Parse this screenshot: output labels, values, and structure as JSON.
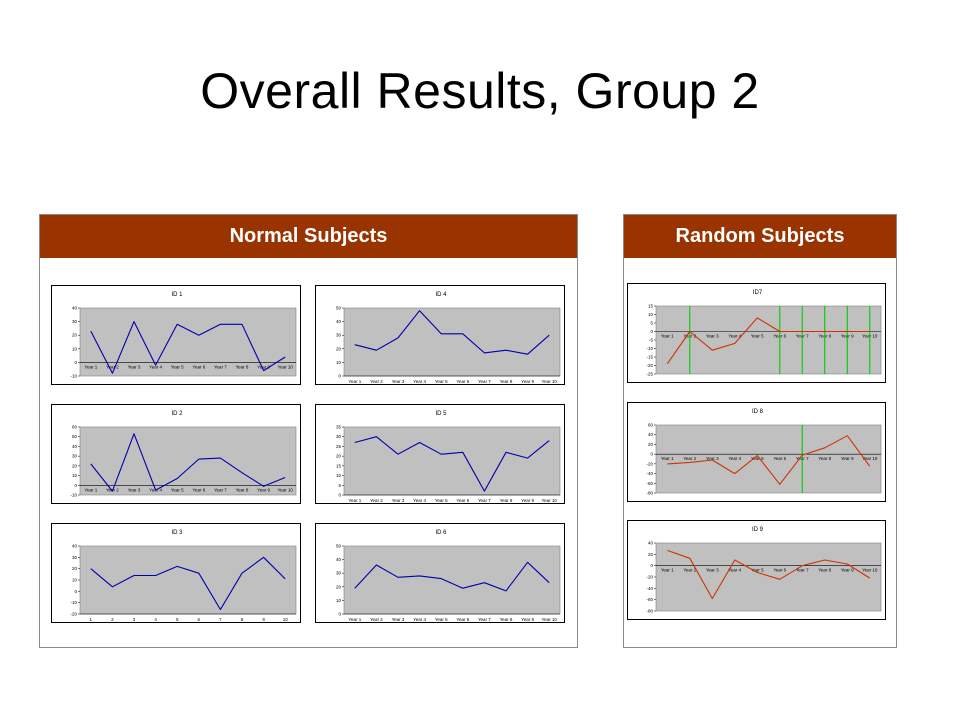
{
  "slide": {
    "title": "Overall Results, Group 2"
  },
  "panels": {
    "normal": {
      "label": "Normal Subjects"
    },
    "random": {
      "label": "Random Subjects"
    }
  },
  "colors": {
    "header": "#993300",
    "normal_line": "#0000aa",
    "random_line": "#cc3300",
    "marker_line": "#00cc00",
    "plot_bg": "#c0c0c0"
  },
  "chart_data": [
    {
      "id": "id1",
      "panel": "normal",
      "type": "line",
      "title": "ID 1",
      "categories": [
        "Year 1",
        "Year 2",
        "Year 3",
        "Year 4",
        "Year 5",
        "Year 6",
        "Year 7",
        "Year 8",
        "Year 9",
        "Year 10"
      ],
      "yticks": [
        40,
        30,
        20,
        10,
        0,
        -10
      ],
      "ylim": [
        -10,
        40
      ],
      "zero_axis": true,
      "series": [
        {
          "values": [
            23,
            -8,
            30,
            -2,
            28,
            20,
            28,
            28,
            -6,
            4
          ]
        }
      ]
    },
    {
      "id": "id4",
      "panel": "normal",
      "type": "line",
      "title": "ID 4",
      "categories": [
        "Year 1",
        "Year 2",
        "Year 3",
        "Year 4",
        "Year 5",
        "Year 6",
        "Year 7",
        "Year 8",
        "Year 9",
        "Year 10"
      ],
      "yticks": [
        50,
        40,
        30,
        20,
        10,
        0
      ],
      "ylim": [
        0,
        50
      ],
      "series": [
        {
          "values": [
            23,
            19,
            28,
            48,
            31,
            31,
            17,
            19,
            16,
            30
          ]
        }
      ]
    },
    {
      "id": "id2",
      "panel": "normal",
      "type": "line",
      "title": "ID 2",
      "categories": [
        "Year 1",
        "Year 2",
        "Year 3",
        "Year 4",
        "Year 5",
        "Year 6",
        "Year 7",
        "Year 8",
        "Year 9",
        "Year 10"
      ],
      "yticks": [
        60,
        50,
        40,
        30,
        20,
        10,
        0,
        -10
      ],
      "ylim": [
        -10,
        60
      ],
      "zero_axis": true,
      "series": [
        {
          "values": [
            22,
            -6,
            53,
            -5,
            7,
            27,
            28,
            13,
            -1,
            8
          ]
        }
      ]
    },
    {
      "id": "id5",
      "panel": "normal",
      "type": "line",
      "title": "ID 5",
      "categories": [
        "Year 1",
        "Year 2",
        "Year 3",
        "Year 4",
        "Year 5",
        "Year 6",
        "Year 7",
        "Year 8",
        "Year 9",
        "Year 10"
      ],
      "yticks": [
        35,
        30,
        25,
        20,
        15,
        10,
        5,
        0
      ],
      "ylim": [
        0,
        35
      ],
      "series": [
        {
          "values": [
            27,
            30,
            21,
            27,
            21,
            22,
            2,
            22,
            19,
            28
          ]
        }
      ]
    },
    {
      "id": "id3",
      "panel": "normal",
      "type": "line",
      "title": "ID 3",
      "categories": [
        "1",
        "2",
        "3",
        "4",
        "5",
        "6",
        "7",
        "8",
        "9",
        "10"
      ],
      "yticks": [
        40,
        30,
        20,
        10,
        0,
        -10,
        -20
      ],
      "ylim": [
        -20,
        40
      ],
      "zero_axis": false,
      "series": [
        {
          "values": [
            20,
            4,
            14,
            14,
            22,
            16,
            -16,
            16,
            30,
            11
          ]
        }
      ]
    },
    {
      "id": "id6",
      "panel": "normal",
      "type": "line",
      "title": "ID 6",
      "categories": [
        "Year 1",
        "Year 2",
        "Year 3",
        "Year 4",
        "Year 5",
        "Year 6",
        "Year 7",
        "Year 8",
        "Year 9",
        "Year 10"
      ],
      "yticks": [
        50,
        40,
        30,
        20,
        10,
        0
      ],
      "ylim": [
        0,
        50
      ],
      "series": [
        {
          "values": [
            19,
            36,
            27,
            28,
            26,
            19,
            23,
            17,
            38,
            23
          ]
        }
      ]
    },
    {
      "id": "id7",
      "panel": "random",
      "type": "line",
      "title": "ID7",
      "categories": [
        "Year 1",
        "Year 2",
        "Year 3",
        "Year 4",
        "Year 5",
        "Year 6",
        "Year 7",
        "Year 8",
        "Year 9",
        "Year 10"
      ],
      "yticks": [
        15,
        10,
        5,
        0,
        -5,
        -10,
        -15,
        -20,
        -25
      ],
      "ylim": [
        -25,
        15
      ],
      "zero_axis": true,
      "vlines": [
        2,
        6,
        7,
        8,
        9,
        10
      ],
      "series": [
        {
          "values": [
            -19,
            0,
            -11,
            -7,
            8,
            0,
            0,
            0,
            0,
            0
          ]
        }
      ]
    },
    {
      "id": "id8",
      "panel": "random",
      "type": "line",
      "title": "ID 8",
      "categories": [
        "Year 1",
        "Year 2",
        "Year 3",
        "Year 4",
        "Year 5",
        "Year 6",
        "Year 7",
        "Year 8",
        "Year 9",
        "Year 10"
      ],
      "yticks": [
        60,
        40,
        20,
        0,
        -20,
        -40,
        -60,
        -80
      ],
      "ylim": [
        -80,
        60
      ],
      "zero_axis": true,
      "vlines": [
        7
      ],
      "series": [
        {
          "values": [
            -20,
            -17,
            -12,
            -40,
            -3,
            -62,
            -2,
            13,
            38,
            -25
          ]
        }
      ]
    },
    {
      "id": "id9",
      "panel": "random",
      "type": "line",
      "title": "ID 9",
      "categories": [
        "Year 1",
        "Year 2",
        "Year 3",
        "Year 4",
        "Year 5",
        "Year 6",
        "Year 7",
        "Year 8",
        "Year 9",
        "Year 10"
      ],
      "yticks": [
        40,
        20,
        0,
        -20,
        -40,
        -60,
        -80
      ],
      "ylim": [
        -80,
        40
      ],
      "zero_axis": true,
      "series": [
        {
          "values": [
            27,
            13,
            -58,
            10,
            -12,
            -24,
            0,
            10,
            3,
            -22
          ]
        }
      ]
    }
  ]
}
